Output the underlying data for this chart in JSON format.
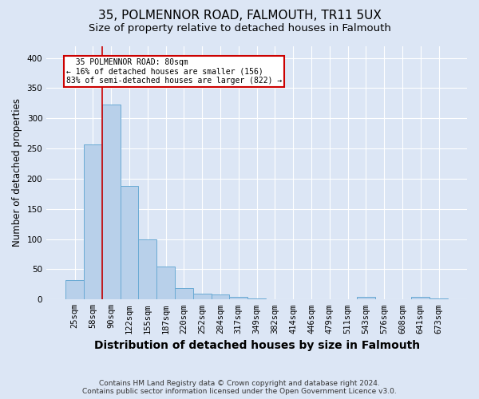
{
  "title": "35, POLMENNOR ROAD, FALMOUTH, TR11 5UX",
  "subtitle": "Size of property relative to detached houses in Falmouth",
  "xlabel": "Distribution of detached houses by size in Falmouth",
  "ylabel": "Number of detached properties",
  "categories": [
    "25sqm",
    "58sqm",
    "90sqm",
    "122sqm",
    "155sqm",
    "187sqm",
    "220sqm",
    "252sqm",
    "284sqm",
    "317sqm",
    "349sqm",
    "382sqm",
    "414sqm",
    "446sqm",
    "479sqm",
    "511sqm",
    "543sqm",
    "576sqm",
    "608sqm",
    "641sqm",
    "673sqm"
  ],
  "values": [
    32,
    257,
    323,
    188,
    99,
    54,
    19,
    10,
    8,
    5,
    2,
    1,
    1,
    1,
    0,
    0,
    4,
    0,
    0,
    5,
    2
  ],
  "bar_color": "#b8d0ea",
  "bar_edge_color": "#6aaad4",
  "property_line_color": "#cc0000",
  "property_line_x": 1.5,
  "annotation_text": "  35 POLMENNOR ROAD: 80sqm  \n← 16% of detached houses are smaller (156)\n83% of semi-detached houses are larger (822) →",
  "annotation_box_color": "#ffffff",
  "annotation_box_edge_color": "#cc0000",
  "background_color": "#dce6f5",
  "plot_bg_color": "#dce6f5",
  "grid_color": "#ffffff",
  "footer_line1": "Contains HM Land Registry data © Crown copyright and database right 2024.",
  "footer_line2": "Contains public sector information licensed under the Open Government Licence v3.0.",
  "ylim": [
    0,
    420
  ],
  "yticks": [
    0,
    50,
    100,
    150,
    200,
    250,
    300,
    350,
    400
  ],
  "title_fontsize": 11,
  "subtitle_fontsize": 9.5,
  "tick_fontsize": 7.5,
  "ylabel_fontsize": 8.5,
  "xlabel_fontsize": 10,
  "footer_fontsize": 6.5
}
